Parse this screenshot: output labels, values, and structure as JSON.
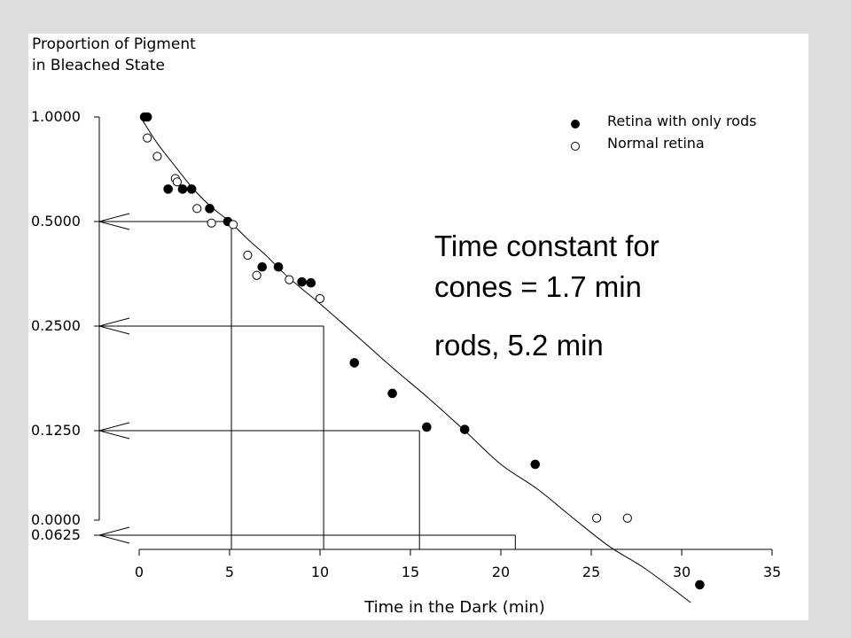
{
  "chart_data": {
    "type": "scatter",
    "ylabel_line1": "Proportion of Pigment",
    "ylabel_line2": "in Bleached State",
    "xlabel": "Time in the Dark (min)",
    "xlim": [
      0,
      35
    ],
    "x_ticks": [
      "0",
      "5",
      "10",
      "15",
      "20",
      "25",
      "30",
      "35"
    ],
    "y_scale": "log2 with a zero baseline",
    "y_ticks": [
      {
        "label": "1.0000",
        "value": 1.0
      },
      {
        "label": "0.5000",
        "value": 0.5
      },
      {
        "label": "0.2500",
        "value": 0.25
      },
      {
        "label": "0.1250",
        "value": 0.125
      },
      {
        "label": "0.0625",
        "value": 0.0625
      },
      {
        "label": "0.0000",
        "value": 0
      }
    ],
    "series": [
      {
        "name": "Retina with only rods",
        "marker": "filled-circle",
        "points": [
          [
            0.3,
            1.0
          ],
          [
            0.45,
            1.0
          ],
          [
            1.6,
            0.62
          ],
          [
            2.4,
            0.62
          ],
          [
            2.9,
            0.62
          ],
          [
            3.9,
            0.545
          ],
          [
            4.9,
            0.5
          ],
          [
            6.8,
            0.37
          ],
          [
            7.7,
            0.37
          ],
          [
            9.0,
            0.335
          ],
          [
            9.5,
            0.333
          ],
          [
            11.9,
            0.196
          ],
          [
            14.0,
            0.16
          ],
          [
            15.9,
            0.128
          ],
          [
            18.0,
            0.126
          ],
          [
            21.9,
            0.1
          ],
          [
            31.0,
            0.045
          ]
        ]
      },
      {
        "name": "Normal retina",
        "marker": "open-circle",
        "points": [
          [
            0.45,
            0.87
          ],
          [
            1.0,
            0.77
          ],
          [
            2.0,
            0.665
          ],
          [
            2.1,
            0.65
          ],
          [
            3.2,
            0.545
          ],
          [
            4.0,
            0.495
          ],
          [
            5.2,
            0.49
          ],
          [
            6.0,
            0.4
          ],
          [
            6.5,
            0.35
          ],
          [
            8.3,
            0.34
          ],
          [
            10.0,
            0.3
          ],
          [
            25.3,
            0.07
          ],
          [
            27.0,
            0.07
          ]
        ]
      }
    ],
    "fit_curve": [
      [
        0.2,
        0.975
      ],
      [
        1,
        0.84
      ],
      [
        2,
        0.72
      ],
      [
        3,
        0.62
      ],
      [
        4,
        0.55
      ],
      [
        5,
        0.5
      ],
      [
        6,
        0.445
      ],
      [
        7,
        0.4
      ],
      [
        8,
        0.355
      ],
      [
        9,
        0.32
      ],
      [
        10,
        0.29
      ],
      [
        12,
        0.235
      ],
      [
        14,
        0.19
      ],
      [
        16,
        0.155
      ],
      [
        18,
        0.125
      ],
      [
        20,
        0.1
      ],
      [
        22,
        0.085
      ],
      [
        24,
        0.07
      ],
      [
        26,
        0.058
      ],
      [
        28,
        0.05
      ],
      [
        30.5,
        0.04
      ]
    ],
    "half_life_markers": [
      {
        "y": 0.5,
        "x": 5.1
      },
      {
        "y": 0.25,
        "x": 10.2
      },
      {
        "y": 0.125,
        "x": 15.5
      },
      {
        "y": 0.0625,
        "x": 20.8
      }
    ],
    "annotation_line1": "Time constant for",
    "annotation_line2": "cones = 1.7 min",
    "annotation_line3": "rods, 5.2 min",
    "legend_position": "top-right"
  }
}
